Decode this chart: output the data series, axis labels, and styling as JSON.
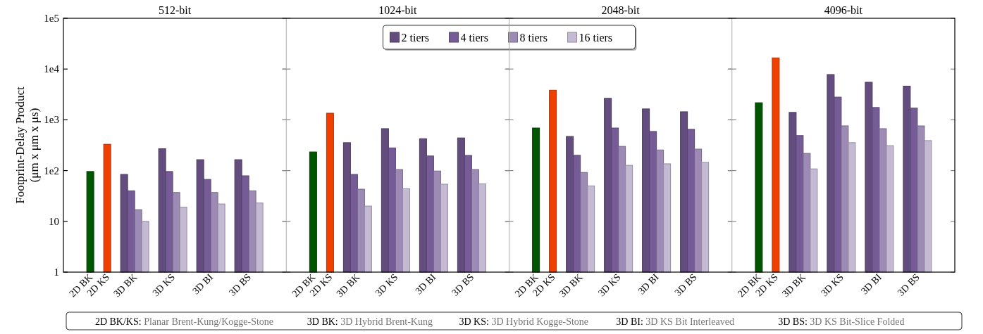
{
  "chart_data": [
    {
      "type": "bar",
      "title": "512-bit",
      "ylabel": "Footprint-Delay Product\n(μm x μm x μs)",
      "categories": [
        "2D BK",
        "2D KS",
        "3D BK",
        "3D KS",
        "3D BI",
        "3D BS"
      ],
      "log": true,
      "ylim": [
        1,
        100000
      ],
      "yticks": [
        1,
        10,
        {
          "value": 100,
          "label": "1e2"
        },
        {
          "value": 1000,
          "label": "1e3"
        },
        {
          "value": 10000,
          "label": "1e4"
        },
        {
          "value": 100000,
          "label": "1e5"
        }
      ],
      "series": [
        {
          "colors": [
            "#005500",
            "#f04000",
            null,
            null,
            null,
            null
          ],
          "values": [
            96,
            330,
            null,
            null,
            null,
            null
          ]
        },
        {
          "color": "#634c7e",
          "values": [
            null,
            null,
            84,
            270,
            164,
            164
          ]
        },
        {
          "color": "#765c97",
          "values": [
            null,
            null,
            40,
            96,
            67,
            79
          ]
        },
        {
          "color": "#9d8ab5",
          "values": [
            null,
            null,
            17,
            37,
            37,
            40
          ]
        },
        {
          "color": "#c5bad3",
          "values": [
            null,
            null,
            10,
            19,
            22,
            23
          ]
        }
      ],
      "annotations": [
        "2D BK/KS: Planar Brent-Kung/Kogge-Stone",
        "3D BK: 3D Hybrid Brent-Kung",
        "3D KS: 3D Hybrid Kogge-Stone",
        "3D BI:  3D KS Bit Interleaved",
        "3D BS: 3D KS Bit-Slice Folded"
      ]
    },
    {
      "type": "bar",
      "title": "1024-bit",
      "categories": [
        "2D BK",
        "2D KS",
        "3D BK",
        "3D KS",
        "3D BI",
        "3D BS"
      ],
      "log": true,
      "ylim": [
        1,
        100000
      ],
      "yticks": [
        1,
        10,
        100,
        1000,
        10000,
        100000
      ],
      "tick_labels": "x",
      "legend": "top right",
      "series": [
        {
          "colors": [
            "#005500",
            "#f04000",
            null,
            null,
            null,
            null
          ],
          "values": [
            233,
            1350,
            null,
            null,
            null,
            null
          ]
        },
        {
          "name": "2 tiers",
          "color": "#634c7e",
          "values": [
            null,
            null,
            355,
            670,
            425,
            440
          ]
        },
        {
          "name": "4 tiers",
          "color": "#765c97",
          "values": [
            null,
            null,
            84,
            280,
            194,
            199
          ]
        },
        {
          "name": "8 tiers",
          "color": "#9d8ab5",
          "values": [
            null,
            null,
            43,
            105,
            98,
            105
          ]
        },
        {
          "name": "16 tiers",
          "color": "#c5bad3",
          "values": [
            null,
            null,
            20,
            44,
            54,
            55
          ]
        }
      ]
    },
    {
      "type": "bar",
      "title": "2048-bit",
      "categories": [
        "2D BK",
        "2D KS",
        "3D BK",
        "3D KS",
        "3D BI",
        "3D BS"
      ],
      "log": true,
      "ylim": [
        1,
        100000
      ],
      "yticks": [
        1,
        10,
        100,
        1000,
        10000,
        100000
      ],
      "tick_labels": "x",
      "series": [
        {
          "colors": [
            "#005500",
            "#f04000",
            null,
            null,
            null,
            null
          ],
          "values": [
            690,
            3830,
            null,
            null,
            null,
            null
          ]
        },
        {
          "color": "#634c7e",
          "values": [
            null,
            null,
            470,
            2650,
            1640,
            1440
          ]
        },
        {
          "color": "#765c97",
          "values": [
            null,
            null,
            200,
            690,
            590,
            650
          ]
        },
        {
          "color": "#9d8ab5",
          "values": [
            null,
            null,
            92,
            300,
            255,
            265
          ]
        },
        {
          "color": "#c5bad3",
          "values": [
            null,
            null,
            50,
            127,
            136,
            145
          ]
        }
      ]
    },
    {
      "type": "bar",
      "title": "4096-bit",
      "categories": [
        "2D BK",
        "2D KS",
        "3D BK",
        "3D KS",
        "3D BI",
        "3D BS"
      ],
      "log": true,
      "ylim": [
        1,
        100000
      ],
      "yticks": [
        1,
        10,
        100,
        1000,
        10000,
        100000
      ],
      "tick_labels": "x",
      "series": [
        {
          "colors": [
            "#005500",
            "#f04000",
            null,
            null,
            null,
            null
          ],
          "values": [
            2170,
            16600,
            null,
            null,
            null,
            null
          ]
        },
        {
          "color": "#634c7e",
          "values": [
            null,
            null,
            1400,
            7800,
            5500,
            4600
          ]
        },
        {
          "color": "#765c97",
          "values": [
            null,
            null,
            490,
            2800,
            1750,
            1700
          ]
        },
        {
          "color": "#9d8ab5",
          "values": [
            null,
            null,
            218,
            760,
            670,
            760
          ]
        },
        {
          "color": "#c5bad3",
          "values": [
            null,
            null,
            108,
            355,
            310,
            390
          ]
        }
      ]
    }
  ]
}
